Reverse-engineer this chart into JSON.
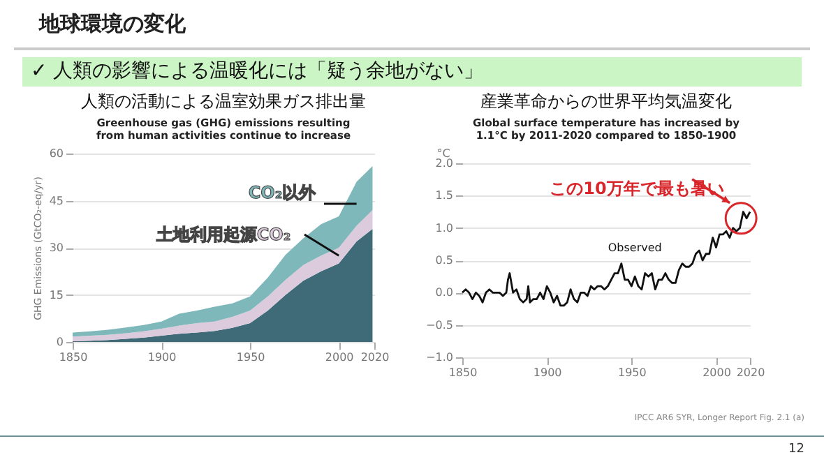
{
  "chart_data": [
    {
      "type": "area",
      "title": "人類の活動による温室効果ガス排出量",
      "subtitle": "Greenhouse gas (GHG) emissions resulting from human activities continue to increase",
      "ylabel": "GHG Emissions (GtCO₂-eq/yr)",
      "stacked": true,
      "grid": "y",
      "annotations": [
        "地球環境の変化",
        "✓ 人類の影響による温暖化には「疑う余地がない」"
      ],
      "x": [
        1850,
        1860,
        1870,
        1880,
        1890,
        1900,
        1910,
        1920,
        1930,
        1940,
        1950,
        1960,
        1970,
        1980,
        1990,
        2000,
        2010,
        2019
      ],
      "series": [
        {
          "color": "#3f6b78",
          "values": [
            0.2,
            0.4,
            0.6,
            1.0,
            1.4,
            2,
            2.6,
            3,
            3.5,
            4.5,
            6,
            10,
            15,
            19.5,
            22.5,
            25,
            32,
            36
          ]
        },
        {
          "name": "土地利用起源CO₂",
          "color": "#dccbdc",
          "values": [
            1.5,
            1.6,
            1.7,
            1.8,
            2.0,
            2.2,
            2.6,
            3,
            3,
            3.5,
            4,
            4.5,
            4.8,
            5,
            5,
            5,
            5,
            6
          ]
        },
        {
          "name": "CO₂以外",
          "color": "#7fb8bb",
          "values": [
            1.3,
            1.4,
            1.6,
            1.8,
            2.0,
            2.3,
            3.8,
            4,
            4.7,
            4.3,
            4.5,
            6,
            8,
            8.5,
            10,
            10,
            14,
            14
          ]
        }
      ],
      "xlim": [
        1850,
        2020
      ],
      "xticks": [
        1850,
        1900,
        1950,
        2000,
        2020
      ],
      "ylim": [
        0,
        60
      ],
      "yticks": [
        0,
        15,
        30,
        45,
        60
      ]
    },
    {
      "type": "line",
      "title": "産業革命からの世界平均気温変化",
      "subtitle": "Global surface temperature has increased by 1.1°C by 2011-2020 compared to 1850-1900",
      "ylabel": "°C",
      "grid": "y",
      "annotations": [
        "この10万年で最も暑い",
        "IPCC AR6 SYR, Longer Report Fig. 2.1 (a)",
        "12"
      ],
      "x": [
        1850,
        1852,
        1854,
        1856,
        1858,
        1860,
        1862,
        1864,
        1866,
        1868,
        1870,
        1872,
        1874,
        1876,
        1877,
        1878,
        1880,
        1882,
        1884,
        1886,
        1888,
        1889,
        1890,
        1892,
        1894,
        1896,
        1898,
        1900,
        1902,
        1904,
        1906,
        1908,
        1910,
        1912,
        1914,
        1916,
        1918,
        1920,
        1922,
        1924,
        1926,
        1928,
        1930,
        1932,
        1934,
        1936,
        1938,
        1940,
        1942,
        1944,
        1946,
        1948,
        1950,
        1952,
        1954,
        1956,
        1958,
        1960,
        1962,
        1964,
        1966,
        1968,
        1970,
        1972,
        1974,
        1976,
        1978,
        1980,
        1982,
        1984,
        1986,
        1988,
        1990,
        1992,
        1994,
        1996,
        1998,
        2000,
        2002,
        2004,
        2006,
        2008,
        2010,
        2012,
        2014,
        2016,
        2018,
        2020
      ],
      "series": [
        {
          "name": "Observed",
          "color": "#111111",
          "values": [
            0.0,
            0.05,
            0.0,
            -0.1,
            0.0,
            -0.05,
            -0.15,
            0.0,
            0.05,
            0.0,
            0.0,
            0.0,
            -0.05,
            0.0,
            0.2,
            0.3,
            0.0,
            0.05,
            -0.1,
            -0.15,
            -0.1,
            0.1,
            -0.15,
            -0.1,
            -0.1,
            0.0,
            -0.1,
            0.1,
            0.0,
            -0.15,
            -0.05,
            -0.2,
            -0.2,
            -0.15,
            0.05,
            -0.1,
            -0.15,
            0.0,
            0.0,
            -0.05,
            0.1,
            0.05,
            0.1,
            0.1,
            0.05,
            0.1,
            0.2,
            0.3,
            0.3,
            0.45,
            0.2,
            0.2,
            0.1,
            0.25,
            0.1,
            0.05,
            0.3,
            0.25,
            0.3,
            0.05,
            0.2,
            0.2,
            0.3,
            0.2,
            0.15,
            0.15,
            0.35,
            0.45,
            0.4,
            0.4,
            0.45,
            0.6,
            0.65,
            0.5,
            0.6,
            0.6,
            0.85,
            0.7,
            0.9,
            0.9,
            0.95,
            0.85,
            1.0,
            0.95,
            1.0,
            1.25,
            1.15,
            1.25
          ]
        }
      ],
      "xlim": [
        1850,
        2020
      ],
      "xticks": [
        1850,
        1900,
        1950,
        2000,
        2020
      ],
      "ylim": [
        -1.0,
        2.0
      ],
      "yticks": [
        {
          "value": -1.0,
          "label": "−1.0"
        },
        {
          "value": -0.5,
          "label": "−0.5"
        },
        {
          "value": 0,
          "label": "0.0"
        },
        {
          "value": 0.5,
          "label": "0.5"
        },
        {
          "value": 1.0,
          "label": "1.0"
        },
        {
          "value": 1.5,
          "label": "1.5"
        },
        {
          "value": 2.0,
          "label": "2.0"
        }
      ]
    }
  ]
}
